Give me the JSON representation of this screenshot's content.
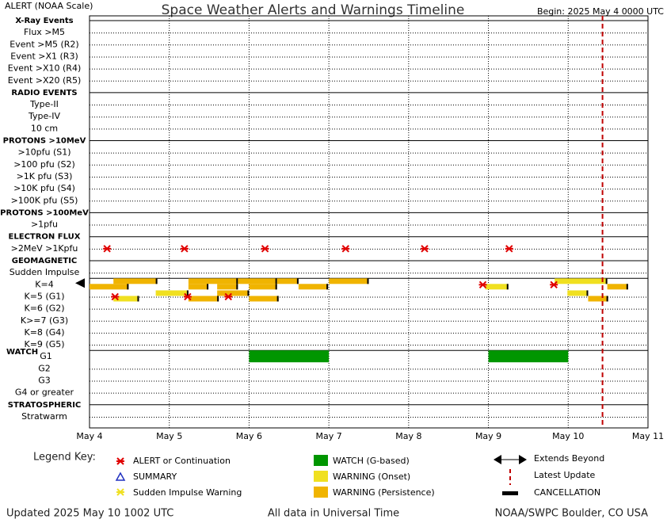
{
  "header": {
    "left": "ALERT (NOAA Scale)",
    "title": "Space Weather Alerts and Warnings Timeline",
    "right": "Begin: 2025 May 4 0000 UTC"
  },
  "chart_data": {
    "type": "timeline",
    "xlim": [
      4,
      11
    ],
    "xticks": [
      {
        "value": 4,
        "label": "May 4"
      },
      {
        "value": 5,
        "label": "May 5"
      },
      {
        "value": 6,
        "label": "May 6"
      },
      {
        "value": 7,
        "label": "May 7"
      },
      {
        "value": 8,
        "label": "May 8"
      },
      {
        "value": 9,
        "label": "May 9"
      },
      {
        "value": 10,
        "label": "May 10"
      },
      {
        "value": 11,
        "label": "May 11"
      }
    ],
    "colors": {
      "alert": "#e00000",
      "onset": "#f0e020",
      "persistence": "#f0b400",
      "watch": "#009600",
      "latest": "#c00000"
    },
    "latest_update": 10.43,
    "section_label": "WATCH",
    "rows": [
      {
        "label": "X-Ray Events",
        "header": true
      },
      {
        "label": "Flux >M5"
      },
      {
        "label": "Event >M5 (R2)"
      },
      {
        "label": "Event >X1 (R3)"
      },
      {
        "label": "Event >X10 (R4)"
      },
      {
        "label": "Event >X20 (R5)"
      },
      {
        "label": "RADIO EVENTS",
        "header": true
      },
      {
        "label": "Type-II"
      },
      {
        "label": "Type-IV"
      },
      {
        "label": "10 cm"
      },
      {
        "label": "PROTONS >10MeV",
        "header": true
      },
      {
        "label": ">10pfu (S1)"
      },
      {
        "label": ">100 pfu (S2)"
      },
      {
        "label": ">1K pfu (S3)"
      },
      {
        "label": ">10K pfu (S4)"
      },
      {
        "label": ">100K pfu (S5)"
      },
      {
        "label": "PROTONS >100MeV",
        "header": true
      },
      {
        "label": ">1pfu"
      },
      {
        "label": "ELECTRON FLUX",
        "header": true
      },
      {
        "label": ">2MeV >1Kpfu",
        "alerts": [
          4.22,
          5.19,
          6.2,
          7.21,
          8.2,
          9.26
        ]
      },
      {
        "label": "GEOMAGNETIC",
        "header": true
      },
      {
        "label": "Sudden Impulse"
      },
      {
        "label": "K=4",
        "extends_left": true,
        "alerts": [
          8.93,
          9.82
        ],
        "upper": [
          {
            "start": 4.3,
            "end": 4.85,
            "kind": "persistence"
          },
          {
            "start": 5.24,
            "end": 5.86,
            "kind": "persistence"
          },
          {
            "start": 5.86,
            "end": 6.35,
            "kind": "persistence"
          },
          {
            "start": 6.35,
            "end": 6.62,
            "kind": "persistence"
          },
          {
            "start": 7.0,
            "end": 7.5,
            "kind": "persistence"
          },
          {
            "start": 9.83,
            "end": 10.49,
            "kind": "onset"
          }
        ],
        "lower": [
          {
            "start": 4.0,
            "end": 4.49,
            "kind": "persistence"
          },
          {
            "start": 5.24,
            "end": 5.49,
            "kind": "persistence"
          },
          {
            "start": 5.6,
            "end": 5.86,
            "kind": "persistence"
          },
          {
            "start": 6.0,
            "end": 6.35,
            "kind": "persistence"
          },
          {
            "start": 6.62,
            "end": 6.99,
            "kind": "persistence"
          },
          {
            "start": 8.96,
            "end": 9.25,
            "kind": "onset"
          },
          {
            "start": 10.49,
            "end": 10.75,
            "kind": "persistence"
          }
        ]
      },
      {
        "label": "K=5 (G1)",
        "alerts": [
          4.32,
          5.23,
          5.74
        ],
        "upper": [
          {
            "start": 4.83,
            "end": 5.24,
            "kind": "onset"
          },
          {
            "start": 5.6,
            "end": 6.0,
            "kind": "persistence"
          },
          {
            "start": 9.99,
            "end": 10.25,
            "kind": "onset"
          }
        ],
        "lower": [
          {
            "start": 4.3,
            "end": 4.62,
            "kind": "onset"
          },
          {
            "start": 5.24,
            "end": 5.62,
            "kind": "persistence"
          },
          {
            "start": 6.0,
            "end": 6.37,
            "kind": "persistence"
          },
          {
            "start": 10.25,
            "end": 10.5,
            "kind": "persistence"
          }
        ]
      },
      {
        "label": "K=6 (G2)"
      },
      {
        "label": "K>=7 (G3)"
      },
      {
        "label": "K=8 (G4)"
      },
      {
        "label": "K=9 (G5)"
      },
      {
        "label": "G1",
        "watches": [
          {
            "start": 6.0,
            "end": 7.0
          },
          {
            "start": 9.0,
            "end": 10.0
          }
        ]
      },
      {
        "label": "G2"
      },
      {
        "label": "G3"
      },
      {
        "label": "G4 or greater"
      },
      {
        "label": "STRATOSPHERIC",
        "header": true
      },
      {
        "label": "Stratwarm"
      }
    ]
  },
  "legend": {
    "title": "Legend Key:",
    "items": [
      {
        "label": "ALERT or Continuation"
      },
      {
        "label": "SUMMARY"
      },
      {
        "label": "Sudden Impulse Warning"
      },
      {
        "label": "WATCH (G-based)"
      },
      {
        "label": "WARNING (Onset)"
      },
      {
        "label": "WARNING (Persistence)"
      },
      {
        "label": "Extends Beyond"
      },
      {
        "label": "Latest Update"
      },
      {
        "label": "CANCELLATION"
      }
    ]
  },
  "footer": {
    "left": "Updated 2025 May 10 1002 UTC",
    "center": "All data in Universal Time",
    "right": "NOAA/SWPC Boulder, CO USA"
  }
}
